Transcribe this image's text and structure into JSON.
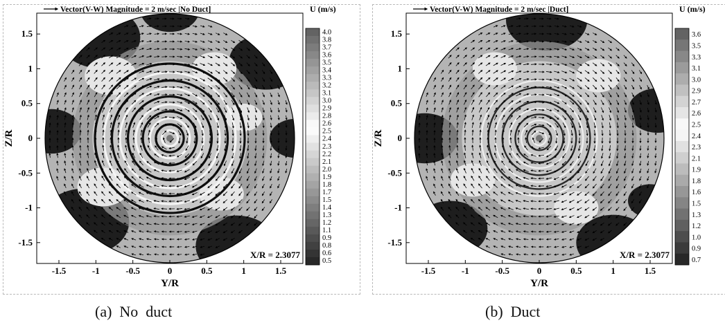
{
  "chart_data": [
    {
      "type": "heatmap",
      "title": "Vector(V-W) Magnitude = 2 m/sec |No Duct]",
      "xlabel": "Y/R",
      "ylabel": "Z/R",
      "xlim": [
        -1.8,
        1.8
      ],
      "ylim": [
        -1.8,
        1.8
      ],
      "x_ticks": [
        "-1.5",
        "-1",
        "-0.5",
        "0",
        "0.5",
        "1",
        "1.5"
      ],
      "y_ticks": [
        "1.5",
        "1",
        "0.5",
        "0",
        "-0.5",
        "-1",
        "-1.5"
      ],
      "annotation": "X/R = 2.3077",
      "colorbar_title": "U (m/s)",
      "colorbar_levels": [
        "4.0",
        "3.8",
        "3.7",
        "3.6",
        "3.5",
        "3.4",
        "3.3",
        "3.2",
        "3.1",
        "3.0",
        "2.9",
        "2.8",
        "2.6",
        "2.5",
        "2.4",
        "2.3",
        "2.2",
        "2.1",
        "2.0",
        "1.9",
        "1.8",
        "1.7",
        "1.5",
        "1.4",
        "1.3",
        "1.2",
        "1.1",
        "0.9",
        "0.8",
        "0.6",
        "0.5"
      ],
      "caption": "(a)  No  duct"
    },
    {
      "type": "heatmap",
      "title": "Vector(V-W) Magnitude = 2 m/sec |Duct]",
      "xlabel": "Y/R",
      "ylabel": "Z/R",
      "xlim": [
        -1.8,
        1.8
      ],
      "ylim": [
        -1.8,
        1.8
      ],
      "x_ticks": [
        "-1.5",
        "-1",
        "-0.5",
        "0",
        "0.5",
        "1",
        "1.5"
      ],
      "y_ticks": [
        "1.5",
        "1",
        "0.5",
        "0",
        "-0.5",
        "-1",
        "-1.5"
      ],
      "annotation": "X/R = 2.3077",
      "colorbar_title": "U (m/s)",
      "colorbar_levels": [
        "3.6",
        "3.5",
        "3.3",
        "3.1",
        "3.0",
        "2.9",
        "2.7",
        "2.6",
        "2.5",
        "2.4",
        "2.3",
        "2.1",
        "1.9",
        "1.8",
        "1.6",
        "1.5",
        "1.3",
        "1.2",
        "1.0",
        "0.9",
        "0.7"
      ],
      "caption": "(b)  Duct"
    }
  ]
}
